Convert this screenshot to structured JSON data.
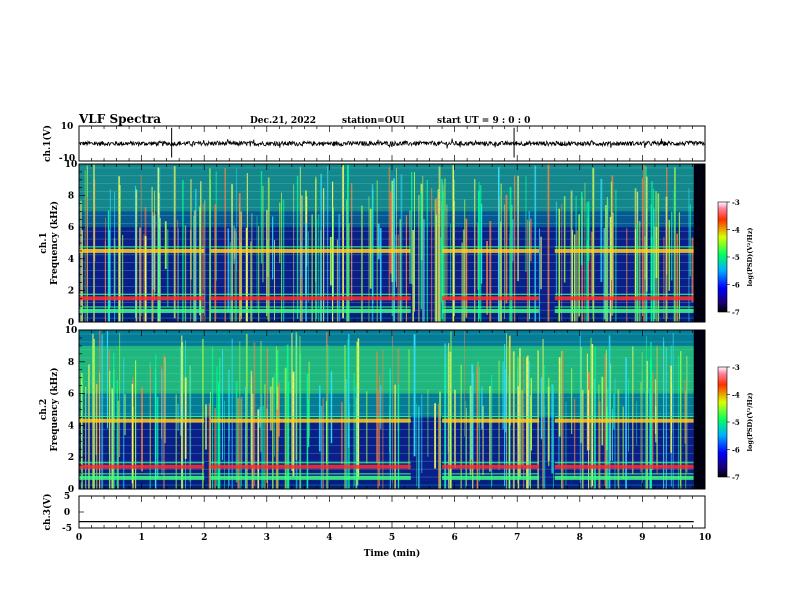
{
  "header": {
    "title": "VLF Spectra",
    "date": "Dec.21, 2022",
    "station": "station=OUI",
    "start": "start UT = 9 : 0 : 0"
  },
  "colors": {
    "axis": "#000000",
    "grid": "#6fd0c8",
    "spectrogram_bg": "#0a1f8a"
  },
  "chart_data": [
    {
      "id": "ch1-waveform",
      "type": "line",
      "ylabel": "ch.1(V)",
      "ylim": [
        -10,
        10
      ],
      "yticks": [
        "10",
        "-10"
      ],
      "xlim": [
        0,
        10
      ],
      "description_values": {
        "baseline": 0,
        "amplitude_typical": 1.5
      }
    },
    {
      "id": "ch1-spectrogram",
      "type": "heatmap",
      "ylabel": "ch.1\nFrequency (kHz)",
      "ylabel_parts": [
        "ch.1",
        "Frequency (kHz)"
      ],
      "ylim": [
        0,
        10
      ],
      "yticks": [
        "0",
        "2",
        "4",
        "6",
        "8",
        "10"
      ],
      "xlim": [
        0,
        10
      ],
      "bands_khz": [
        4.5,
        1.5,
        0.7
      ],
      "gaps_min": [
        [
          2.0,
          2.1
        ],
        [
          5.3,
          5.8
        ],
        [
          7.35,
          7.6
        ]
      ],
      "colorbar": {
        "label": "log(PSD)(V²/Hz)",
        "range": [
          -7,
          -3
        ],
        "ticks": [
          "-3",
          "-4",
          "-5",
          "-6",
          "-7"
        ]
      }
    },
    {
      "id": "ch2-spectrogram",
      "type": "heatmap",
      "ylabel_parts": [
        "ch.2",
        "Frequency (kHz)"
      ],
      "ylim": [
        0,
        10
      ],
      "yticks": [
        "0",
        "2",
        "4",
        "6",
        "8",
        "10"
      ],
      "xlim": [
        0,
        10
      ],
      "bands_khz": [
        4.3,
        1.4,
        0.7
      ],
      "gaps_min": [
        [
          2.0,
          2.1
        ],
        [
          5.3,
          5.8
        ],
        [
          7.35,
          7.6
        ]
      ],
      "colorbar": {
        "label": "log(PSD)(V²/Hz)",
        "range": [
          -7,
          -3
        ],
        "ticks": [
          "-3",
          "-4",
          "-5",
          "-6",
          "-7"
        ]
      }
    },
    {
      "id": "ch3-waveform",
      "type": "line",
      "ylabel": "ch.3(V)",
      "ylim": [
        -5,
        5
      ],
      "yticks": [
        "5",
        "0",
        "-5"
      ],
      "xlim": [
        0,
        10
      ],
      "values": {
        "constant": -3
      }
    }
  ],
  "xaxis": {
    "label": "Time (min)",
    "ticks": [
      "0",
      "1",
      "2",
      "3",
      "4",
      "5",
      "6",
      "7",
      "8",
      "9",
      "10"
    ]
  }
}
